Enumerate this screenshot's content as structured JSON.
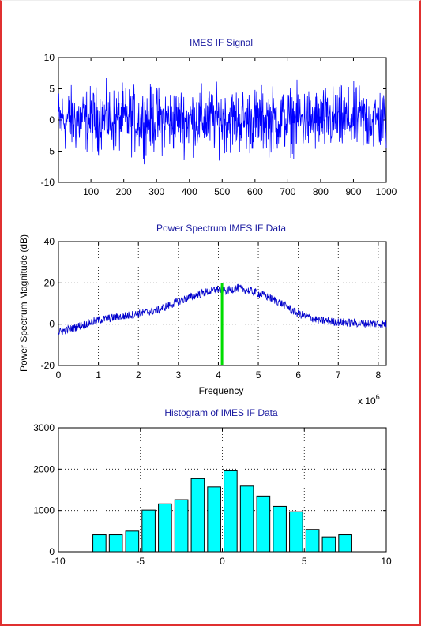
{
  "chart_data": [
    {
      "type": "line",
      "title": "IMES IF Signal",
      "xlabel": "",
      "ylabel": "",
      "xlim": [
        1,
        1000
      ],
      "ylim": [
        -10,
        10
      ],
      "xticks": [
        "100",
        "200",
        "300",
        "400",
        "500",
        "600",
        "700",
        "800",
        "900",
        "1000"
      ],
      "yticks": [
        "-10",
        "-5",
        "0",
        "5",
        "10"
      ],
      "grid": false,
      "color": "#0000ff",
      "x": [
        1,
        1000
      ],
      "y_range": [
        -8,
        7
      ],
      "series": [
        {
          "amplitude_min": -8,
          "amplitude_max": 7,
          "samples": 1000
        }
      ]
    },
    {
      "type": "line",
      "title": "Power Spectrum IMES IF Data",
      "xlabel": "Frequency",
      "ylabel": "Power Spectrum Magnitude (dB)",
      "x_multiplier": "x 10",
      "x_multiplier_exp": "6",
      "xlim": [
        0,
        8.2
      ],
      "ylim": [
        -20,
        40
      ],
      "xticks": [
        "0",
        "1",
        "2",
        "3",
        "4",
        "5",
        "6",
        "7",
        "8"
      ],
      "yticks": [
        "-20",
        "0",
        "20",
        "40"
      ],
      "grid": true,
      "color": "#0000cc",
      "marker_line": {
        "x": 4.092,
        "y": [
          -20,
          20
        ],
        "color": "#00dd00"
      },
      "x": [
        0,
        0.5,
        1,
        1.5,
        2,
        2.5,
        3,
        3.5,
        4,
        4.1,
        4.5,
        5,
        5.5,
        6,
        6.5,
        7,
        7.5,
        8.2
      ],
      "y": [
        -4,
        -1,
        2,
        3.5,
        5,
        7,
        11,
        14.5,
        17,
        16,
        17.5,
        15,
        11,
        5,
        2,
        1,
        0.5,
        0
      ]
    },
    {
      "type": "bar",
      "title": "Histogram of IMES IF Data",
      "xlabel": "",
      "ylabel": "",
      "xlim": [
        -10,
        10
      ],
      "ylim": [
        0,
        3000
      ],
      "xticks": [
        "-10",
        "-5",
        "0",
        "5",
        "10"
      ],
      "yticks": [
        "0",
        "1000",
        "2000",
        "3000"
      ],
      "grid": true,
      "color": "#00ffff",
      "x": [
        -7.5,
        -6.5,
        -5.5,
        -4.5,
        -3.5,
        -2.5,
        -1.5,
        -0.5,
        0.5,
        1.5,
        2.5,
        3.5,
        4.5,
        5.5,
        6.5,
        7.5
      ],
      "values": [
        410,
        410,
        500,
        1010,
        1160,
        1260,
        1770,
        1570,
        1960,
        1590,
        1350,
        1100,
        970,
        540,
        360,
        410
      ]
    }
  ]
}
